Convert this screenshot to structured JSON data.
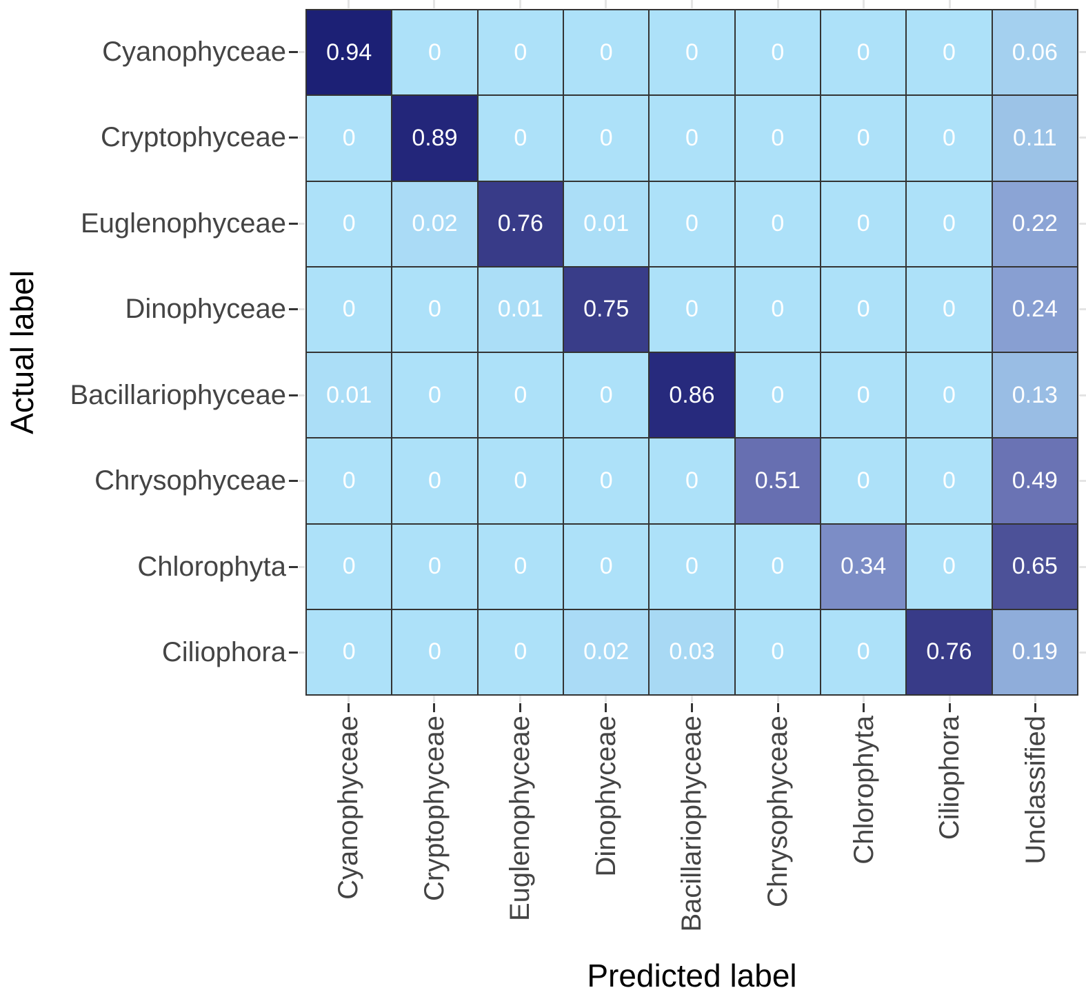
{
  "chart_data": {
    "type": "heatmap",
    "title": "",
    "xlabel": "Predicted label",
    "ylabel": "Actual label",
    "x_categories": [
      "Cyanophyceae",
      "Cryptophyceae",
      "Euglenophyceae",
      "Dinophyceae",
      "Bacillariophyceae",
      "Chrysophyceae",
      "Chlorophyta",
      "Ciliophora",
      "Unclassified"
    ],
    "y_categories": [
      "Cyanophyceae",
      "Cryptophyceae",
      "Euglenophyceae",
      "Dinophyceae",
      "Bacillariophyceae",
      "Chrysophyceae",
      "Chlorophyta",
      "Ciliophora"
    ],
    "values": [
      [
        0.94,
        0,
        0,
        0,
        0,
        0,
        0,
        0,
        0.06
      ],
      [
        0,
        0.89,
        0,
        0,
        0,
        0,
        0,
        0,
        0.11
      ],
      [
        0,
        0.02,
        0.76,
        0.01,
        0,
        0,
        0,
        0,
        0.22
      ],
      [
        0,
        0,
        0.01,
        0.75,
        0,
        0,
        0,
        0,
        0.24
      ],
      [
        0.01,
        0,
        0,
        0,
        0.86,
        0,
        0,
        0,
        0.13
      ],
      [
        0,
        0,
        0,
        0,
        0,
        0.51,
        0,
        0,
        0.49
      ],
      [
        0,
        0,
        0,
        0,
        0,
        0,
        0.34,
        0,
        0.65
      ],
      [
        0,
        0,
        0,
        0.02,
        0.03,
        0,
        0,
        0.76,
        0.19
      ]
    ],
    "value_range": [
      0,
      1
    ],
    "grid": true,
    "legend": "none",
    "colorscale": {
      "stops": [
        [
          0.0,
          "#ADE1F9"
        ],
        [
          0.25,
          "#869CD0"
        ],
        [
          0.5,
          "#6971B3"
        ],
        [
          0.7,
          "#42468F"
        ],
        [
          0.85,
          "#282B7E"
        ],
        [
          1.0,
          "#14196F"
        ]
      ]
    },
    "colors": {
      "cell_value_text": "#FFFFFF",
      "cell_border": "#333333",
      "axis_tick_label": "#444444",
      "axis_title": "#000000",
      "axis_tick_mark": "#333333",
      "gridline_stub": "#E4E4E4",
      "background": "#FFFFFF"
    }
  }
}
